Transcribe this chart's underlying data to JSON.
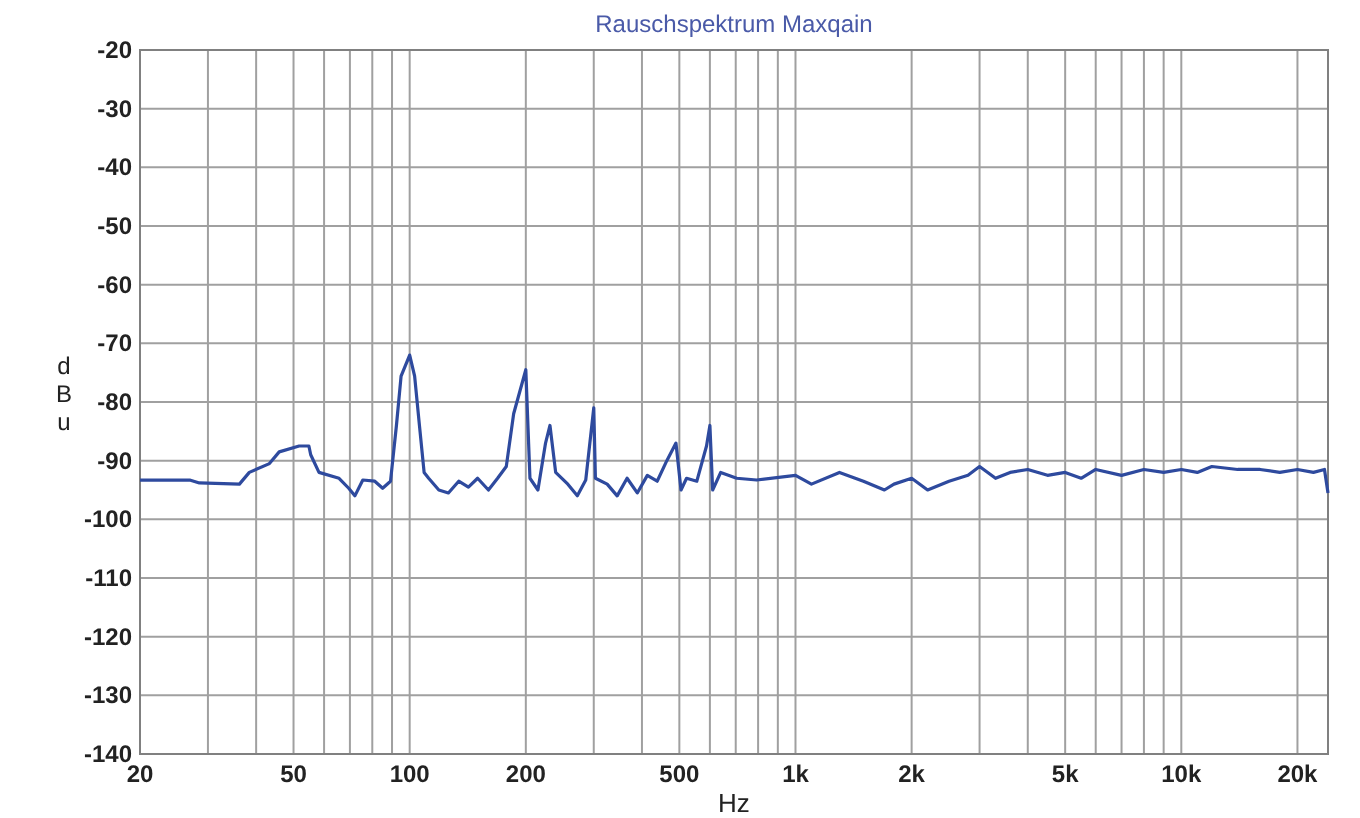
{
  "chart_data": {
    "type": "line",
    "title": "Rauschspektrum Maxqain",
    "xlabel": "Hz",
    "ylabel": "dBu",
    "log": "x",
    "grid": true,
    "line_style": "solid",
    "marker": "none",
    "xlim": [
      20,
      24000
    ],
    "ylim": [
      -140,
      -20
    ],
    "xticks": [
      20,
      {
        "value": 30,
        "label": null
      },
      {
        "value": 40,
        "label": null
      },
      50,
      {
        "value": 60,
        "label": null
      },
      {
        "value": 70,
        "label": null
      },
      {
        "value": 80,
        "label": null
      },
      {
        "value": 90,
        "label": null
      },
      100,
      200,
      {
        "value": 300,
        "label": null
      },
      {
        "value": 400,
        "label": null
      },
      500,
      {
        "value": 600,
        "label": null
      },
      {
        "value": 700,
        "label": null
      },
      {
        "value": 800,
        "label": null
      },
      {
        "value": 900,
        "label": null
      },
      {
        "value": 1000,
        "label": "1k"
      },
      {
        "value": 2000,
        "label": "2k"
      },
      {
        "value": 3000,
        "label": null
      },
      {
        "value": 4000,
        "label": null
      },
      {
        "value": 5000,
        "label": "5k"
      },
      {
        "value": 6000,
        "label": null
      },
      {
        "value": 7000,
        "label": null
      },
      {
        "value": 8000,
        "label": null
      },
      {
        "value": 9000,
        "label": null
      },
      {
        "value": 10000,
        "label": "10k"
      },
      {
        "value": 20000,
        "label": "20k"
      }
    ],
    "yticks": [
      -20,
      -30,
      -40,
      -50,
      -60,
      -70,
      -80,
      -90,
      -100,
      -110,
      -120,
      -130,
      -140
    ],
    "series": [
      {
        "color": "#2e4a9e",
        "x": [
          20,
          26.9,
          28.5,
          36.2,
          38.4,
          43.3,
          45.9,
          51.7,
          54.8,
          55.4,
          58.2,
          65.6,
          69.5,
          72.1,
          75.6,
          81.2,
          85.1,
          89.2,
          92.4,
          95,
          100,
          103,
          106,
          109,
          112,
          119,
          126,
          134,
          142,
          150,
          160,
          169,
          178,
          186,
          200,
          205,
          215,
          225,
          231,
          239,
          257,
          272,
          286,
          300,
          303,
          325,
          345,
          366,
          389,
          413,
          438,
          464,
          490,
          505,
          522,
          555,
          588,
          600,
          610,
          640,
          704,
          793,
          1000,
          1100,
          1300,
          1500,
          1700,
          1800,
          2000,
          2200,
          2500,
          2800,
          3000,
          3300,
          3600,
          4000,
          4500,
          5000,
          5500,
          6000,
          7000,
          8000,
          9000,
          10000,
          11000,
          12000,
          14000,
          16000,
          18000,
          20000,
          22000,
          23500,
          24000
        ],
        "values": [
          -93.3,
          -93.3,
          -93.8,
          -94,
          -92,
          -90.5,
          -88.5,
          -87.5,
          -87.5,
          -89,
          -92,
          -93,
          -94.7,
          -96,
          -93.3,
          -93.5,
          -94.7,
          -93.5,
          -84,
          -75.6,
          -72,
          -75.6,
          -84,
          -92,
          -93,
          -95,
          -95.5,
          -93.5,
          -94.5,
          -93,
          -95,
          -93,
          -91,
          -82,
          -74.5,
          -93,
          -95,
          -87,
          -84,
          -92,
          -94,
          -96,
          -93.3,
          -81,
          -93,
          -94,
          -96,
          -93,
          -95.5,
          -92.5,
          -93.5,
          -90,
          -87,
          -95,
          -93,
          -93.5,
          -87.5,
          -84,
          -95,
          -92,
          -93,
          -93.3,
          -92.5,
          -94,
          -92,
          -93.5,
          -95,
          -94,
          -93,
          -95,
          -93.5,
          -92.5,
          -91,
          -93,
          -92,
          -91.5,
          -92.5,
          -92,
          -93,
          -91.5,
          -92.5,
          -91.5,
          -92,
          -91.5,
          -92,
          -91,
          -91.5,
          -91.5,
          -92,
          -91.5,
          -92,
          -91.5,
          -95.5
        ]
      }
    ]
  }
}
